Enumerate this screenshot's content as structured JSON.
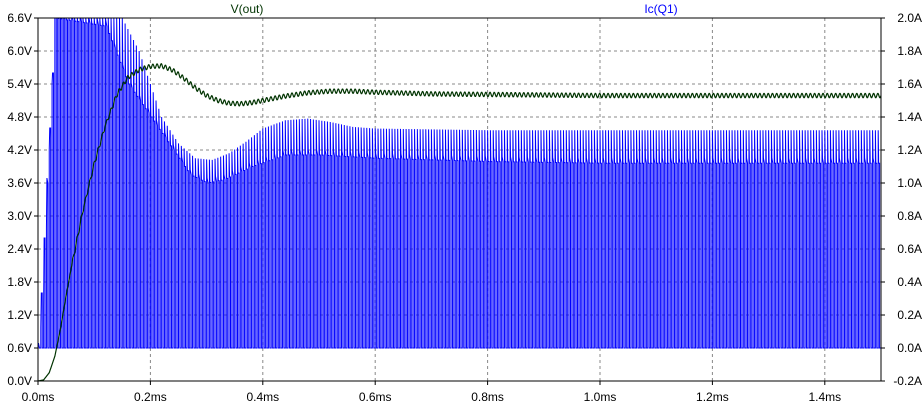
{
  "chart_data": {
    "type": "line",
    "title": "",
    "x_axis": {
      "range_ms": [
        0.0,
        1.5
      ],
      "ticks": [
        {
          "value": 0.0,
          "label": "0.0ms"
        },
        {
          "value": 0.2,
          "label": "0.2ms"
        },
        {
          "value": 0.4,
          "label": "0.4ms"
        },
        {
          "value": 0.6,
          "label": "0.6ms"
        },
        {
          "value": 0.8,
          "label": "0.8ms"
        },
        {
          "value": 1.0,
          "label": "1.0ms"
        },
        {
          "value": 1.2,
          "label": "1.2ms"
        },
        {
          "value": 1.4,
          "label": "1.4ms"
        }
      ]
    },
    "y_left": {
      "range": [
        0.0,
        6.6
      ],
      "ticks": [
        {
          "value": 0.0,
          "label": "0.0V"
        },
        {
          "value": 0.6,
          "label": "0.6V"
        },
        {
          "value": 1.2,
          "label": "1.2V"
        },
        {
          "value": 1.8,
          "label": "1.8V"
        },
        {
          "value": 2.4,
          "label": "2.4V"
        },
        {
          "value": 3.0,
          "label": "3.0V"
        },
        {
          "value": 3.6,
          "label": "3.6V"
        },
        {
          "value": 4.2,
          "label": "4.2V"
        },
        {
          "value": 4.8,
          "label": "4.8V"
        },
        {
          "value": 5.4,
          "label": "5.4V"
        },
        {
          "value": 6.0,
          "label": "6.0V"
        },
        {
          "value": 6.6,
          "label": "6.6V"
        }
      ]
    },
    "y_right": {
      "range": [
        -0.2,
        2.0
      ],
      "ticks": [
        {
          "value": -0.2,
          "label": "-0.2A"
        },
        {
          "value": 0.0,
          "label": "0.0A"
        },
        {
          "value": 0.2,
          "label": "0.2A"
        },
        {
          "value": 0.4,
          "label": "0.4A"
        },
        {
          "value": 0.6,
          "label": "0.6A"
        },
        {
          "value": 0.8,
          "label": "0.8A"
        },
        {
          "value": 1.0,
          "label": "1.0A"
        },
        {
          "value": 1.2,
          "label": "1.2A"
        },
        {
          "value": 1.4,
          "label": "1.4A"
        },
        {
          "value": 1.6,
          "label": "1.6A"
        },
        {
          "value": 1.8,
          "label": "1.8A"
        },
        {
          "value": 2.0,
          "label": "2.0A"
        }
      ]
    },
    "grid": true,
    "series": [
      {
        "name": "V(out)",
        "axis": "left",
        "color": "#003300",
        "ripple_period_ms": 0.0075,
        "ripple_amplitude": 0.04,
        "points": [
          [
            0.0,
            0.0
          ],
          [
            0.01,
            0.02
          ],
          [
            0.02,
            0.15
          ],
          [
            0.03,
            0.45
          ],
          [
            0.04,
            0.95
          ],
          [
            0.05,
            1.55
          ],
          [
            0.06,
            2.1
          ],
          [
            0.08,
            3.1
          ],
          [
            0.1,
            3.95
          ],
          [
            0.12,
            4.65
          ],
          [
            0.14,
            5.2
          ],
          [
            0.16,
            5.52
          ],
          [
            0.18,
            5.66
          ],
          [
            0.2,
            5.72
          ],
          [
            0.22,
            5.73
          ],
          [
            0.24,
            5.65
          ],
          [
            0.26,
            5.5
          ],
          [
            0.28,
            5.33
          ],
          [
            0.3,
            5.19
          ],
          [
            0.32,
            5.1
          ],
          [
            0.34,
            5.05
          ],
          [
            0.36,
            5.04
          ],
          [
            0.38,
            5.06
          ],
          [
            0.4,
            5.1
          ],
          [
            0.44,
            5.18
          ],
          [
            0.48,
            5.24
          ],
          [
            0.52,
            5.27
          ],
          [
            0.56,
            5.27
          ],
          [
            0.6,
            5.25
          ],
          [
            0.7,
            5.22
          ],
          [
            0.8,
            5.21
          ],
          [
            0.9,
            5.2
          ],
          [
            1.0,
            5.19
          ],
          [
            1.2,
            5.19
          ],
          [
            1.5,
            5.19
          ]
        ]
      },
      {
        "name": "Ic(Q1)",
        "axis": "right",
        "color": "#0000ff",
        "pulse_period_ms": 0.005,
        "pulse_on_fraction": 0.5,
        "off_level": 0.0,
        "peak_envelope": [
          [
            0.0,
            0.0
          ],
          [
            0.01,
            0.25
          ],
          [
            0.02,
            1.2
          ],
          [
            0.03,
            2.0
          ],
          [
            0.15,
            2.0
          ],
          [
            0.18,
            1.8
          ],
          [
            0.2,
            1.6
          ],
          [
            0.22,
            1.4
          ],
          [
            0.25,
            1.24
          ],
          [
            0.28,
            1.15
          ],
          [
            0.31,
            1.14
          ],
          [
            0.34,
            1.18
          ],
          [
            0.37,
            1.25
          ],
          [
            0.4,
            1.33
          ],
          [
            0.44,
            1.38
          ],
          [
            0.48,
            1.39
          ],
          [
            0.52,
            1.37
          ],
          [
            0.56,
            1.34
          ],
          [
            0.6,
            1.33
          ],
          [
            0.8,
            1.32
          ],
          [
            1.5,
            1.32
          ]
        ],
        "plateau_envelope": [
          [
            0.0,
            0.0
          ],
          [
            0.03,
            2.0
          ],
          [
            0.12,
            1.95
          ],
          [
            0.16,
            1.6
          ],
          [
            0.2,
            1.4
          ],
          [
            0.24,
            1.2
          ],
          [
            0.27,
            1.05
          ],
          [
            0.3,
            1.0
          ],
          [
            0.33,
            1.02
          ],
          [
            0.38,
            1.1
          ],
          [
            0.44,
            1.17
          ],
          [
            0.5,
            1.17
          ],
          [
            0.6,
            1.15
          ],
          [
            0.8,
            1.13
          ],
          [
            1.0,
            1.12
          ],
          [
            1.5,
            1.12
          ]
        ]
      }
    ]
  }
}
